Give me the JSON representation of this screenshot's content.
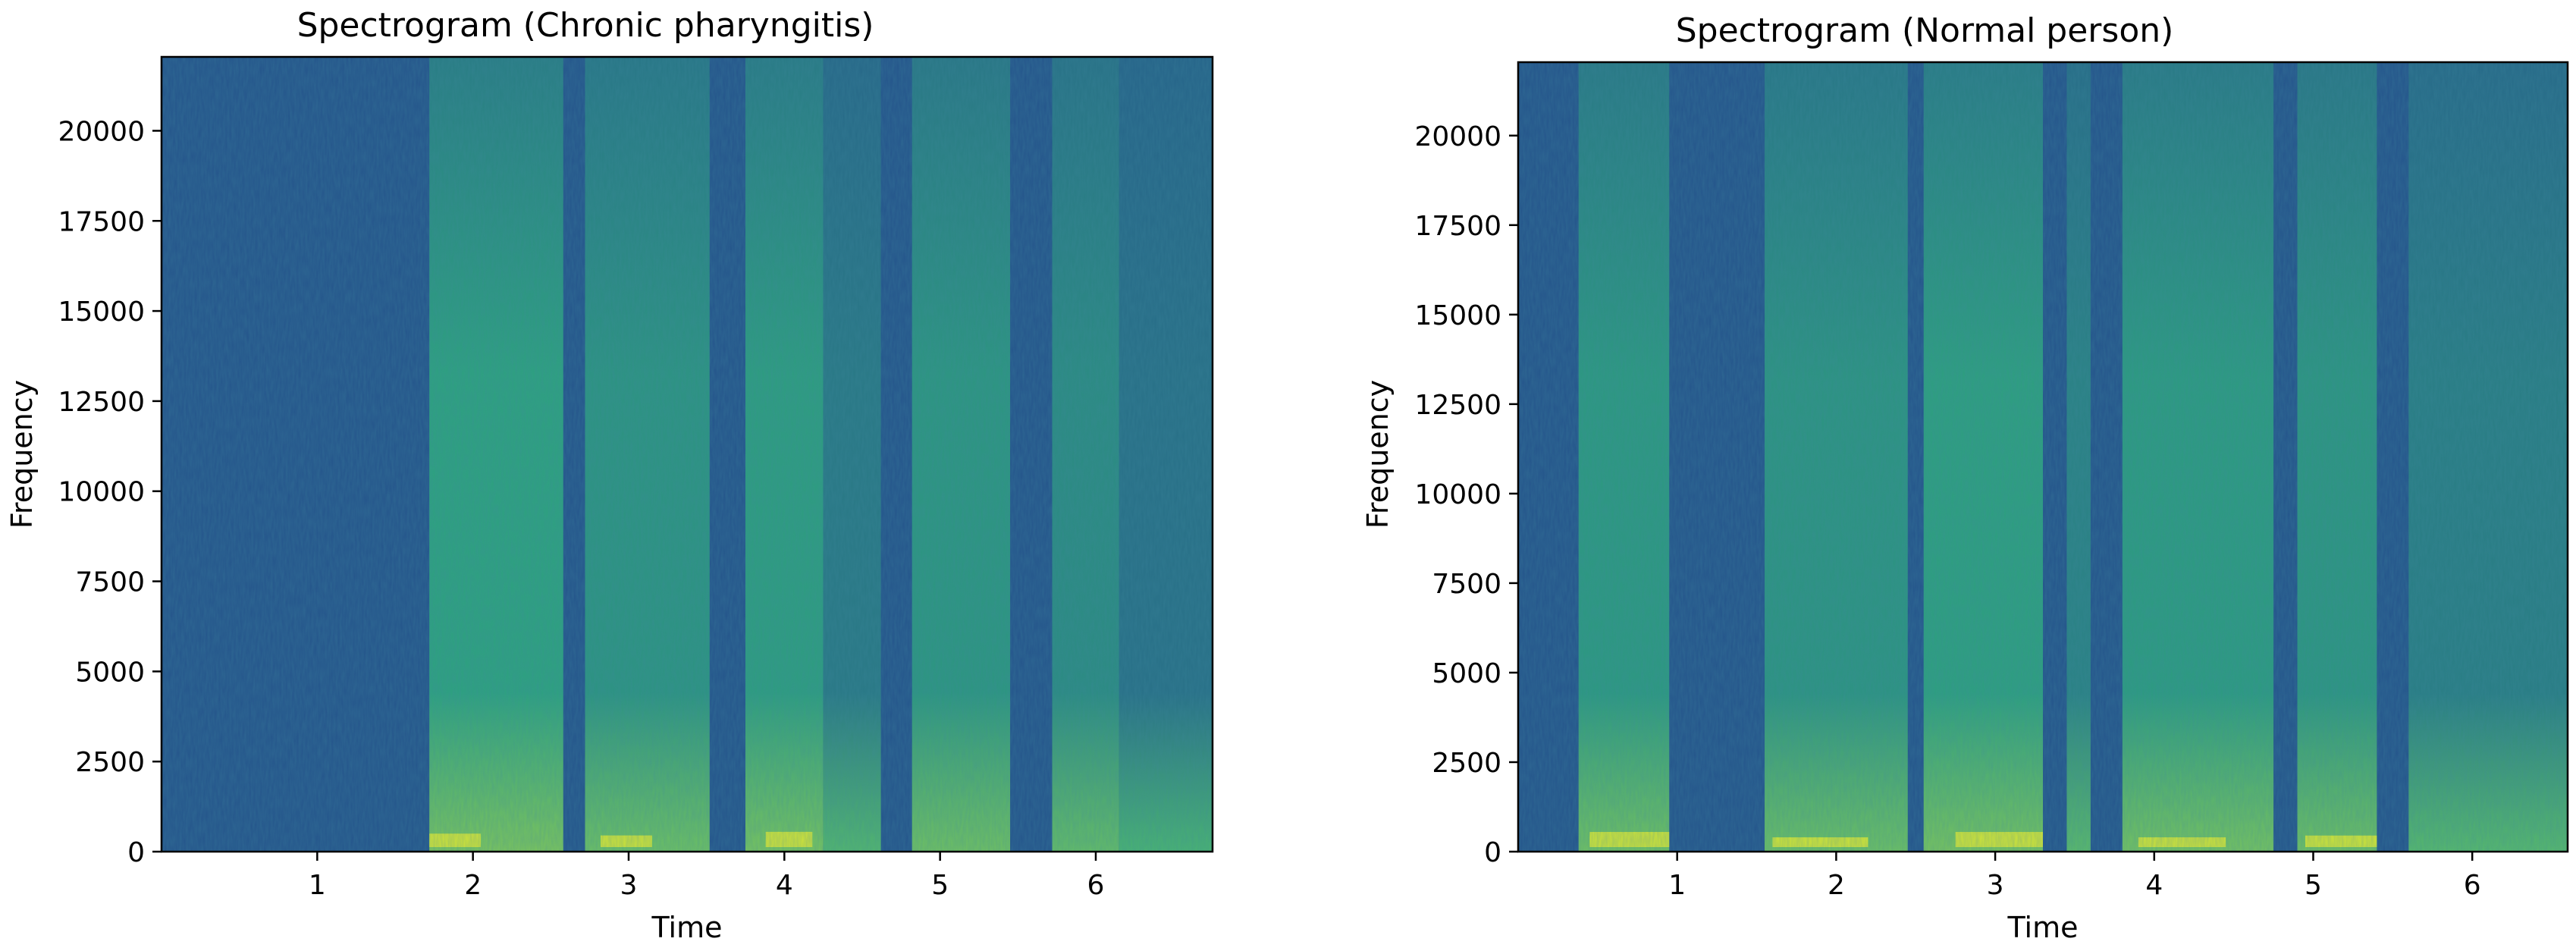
{
  "chart_data": [
    {
      "type": "heatmap",
      "title": "Spectrogram (Chronic pharyngitis)",
      "xlabel": "Time",
      "ylabel": "Frequency",
      "xlim": [
        0,
        6.75
      ],
      "ylim": [
        0,
        22050
      ],
      "xticks": [
        1,
        2,
        3,
        4,
        5,
        6
      ],
      "yticks": [
        0,
        2500,
        5000,
        7500,
        10000,
        12500,
        15000,
        17500,
        20000
      ],
      "colormap": "viridis",
      "colors": {
        "low": "#26578c",
        "mid": "#2fa97e",
        "high": "#cde13a"
      },
      "voiced_segments": [
        {
          "start": 1.72,
          "end": 2.58,
          "energy": 0.85
        },
        {
          "start": 2.72,
          "end": 3.52,
          "energy": 0.7
        },
        {
          "start": 3.75,
          "end": 4.25,
          "energy": 0.8
        },
        {
          "start": 4.25,
          "end": 4.62,
          "energy": 0.4
        },
        {
          "start": 4.82,
          "end": 5.45,
          "energy": 0.72
        },
        {
          "start": 5.72,
          "end": 6.15,
          "energy": 0.6
        },
        {
          "start": 6.15,
          "end": 6.75,
          "energy": 0.3
        }
      ],
      "low_band_peaks": [
        {
          "start": 1.72,
          "end": 2.05,
          "max_freq": 500
        },
        {
          "start": 2.82,
          "end": 3.15,
          "max_freq": 450
        },
        {
          "start": 3.88,
          "end": 4.18,
          "max_freq": 550
        }
      ]
    },
    {
      "type": "heatmap",
      "title": "Spectrogram (Normal person)",
      "xlabel": "Time",
      "ylabel": "Frequency",
      "xlim": [
        0,
        6.6
      ],
      "ylim": [
        0,
        22050
      ],
      "xticks": [
        1,
        2,
        3,
        4,
        5,
        6
      ],
      "yticks": [
        0,
        2500,
        5000,
        7500,
        10000,
        12500,
        15000,
        17500,
        20000
      ],
      "colormap": "viridis",
      "colors": {
        "low": "#26578c",
        "mid": "#2fa97e",
        "high": "#cde13a"
      },
      "voiced_segments": [
        {
          "start": 0.38,
          "end": 0.95,
          "energy": 0.75
        },
        {
          "start": 1.55,
          "end": 2.45,
          "energy": 0.7
        },
        {
          "start": 2.55,
          "end": 3.3,
          "energy": 0.82
        },
        {
          "start": 3.45,
          "end": 3.6,
          "energy": 0.5
        },
        {
          "start": 3.8,
          "end": 4.75,
          "energy": 0.78
        },
        {
          "start": 4.9,
          "end": 5.4,
          "energy": 0.72
        },
        {
          "start": 5.6,
          "end": 6.6,
          "energy": 0.45
        }
      ],
      "low_band_peaks": [
        {
          "start": 0.45,
          "end": 0.95,
          "max_freq": 550
        },
        {
          "start": 1.6,
          "end": 2.2,
          "max_freq": 400
        },
        {
          "start": 2.75,
          "end": 3.3,
          "max_freq": 550
        },
        {
          "start": 3.9,
          "end": 4.45,
          "max_freq": 400
        },
        {
          "start": 4.95,
          "end": 5.4,
          "max_freq": 450
        }
      ]
    }
  ]
}
